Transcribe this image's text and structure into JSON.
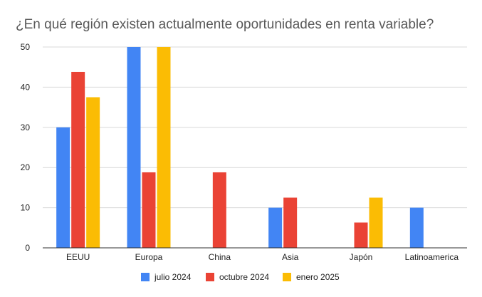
{
  "chart_data": {
    "type": "bar",
    "title": "¿En qué región existen actualmente oportunidades en renta variable?",
    "xlabel": "",
    "ylabel": "",
    "ylim": [
      0,
      50
    ],
    "yticks": [
      0,
      10,
      20,
      30,
      40,
      50
    ],
    "grid": true,
    "legend_position": "bottom",
    "categories": [
      "EEUU",
      "Europa",
      "China",
      "Asia",
      "Japón",
      "Latinoamerica"
    ],
    "series": [
      {
        "name": "julio 2024",
        "color": "#4285F4",
        "values": [
          30,
          50,
          0,
          10,
          0,
          10
        ]
      },
      {
        "name": "octubre 2024",
        "color": "#EA4335",
        "values": [
          43.8,
          18.8,
          18.8,
          12.5,
          6.3,
          0
        ]
      },
      {
        "name": "enero 2025",
        "color": "#FBBC04",
        "values": [
          37.5,
          50,
          0,
          0,
          12.5,
          0
        ]
      }
    ]
  }
}
